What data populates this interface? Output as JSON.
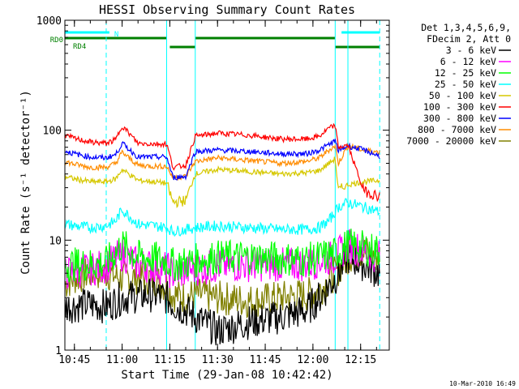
{
  "chart_data": {
    "type": "line",
    "title": "HESSI Observing Summary Count Rates",
    "xlabel": "Start Time (29-Jan-08 10:42:42)",
    "ylabel": "Count Rate (s⁻¹ detector⁻¹)",
    "yscale": "log",
    "ylim": [
      1,
      1000
    ],
    "xlim": [
      "10:42",
      "12:24"
    ],
    "x_ticks": [
      "10:45",
      "11:00",
      "11:15",
      "11:30",
      "11:45",
      "12:00",
      "12:15"
    ],
    "y_ticks": [
      "1",
      "10",
      "100",
      "1000"
    ],
    "footer": "10-Mar-2010 16:49",
    "legend": {
      "placement": "right",
      "header": [
        "Det 1,3,4,5,6,9,",
        "FDecim 2, Att 0"
      ],
      "entries": [
        {
          "label": "3 - 6 keV",
          "color": "#000000"
        },
        {
          "label": "6 - 12 keV",
          "color": "#ff00ff"
        },
        {
          "label": "12 - 25 keV",
          "color": "#00ff00"
        },
        {
          "label": "25 - 50 keV",
          "color": "#00ffff"
        },
        {
          "label": "50 - 100 keV",
          "color": "#d6c800"
        },
        {
          "label": "100 - 300 keV",
          "color": "#ff0000"
        },
        {
          "label": "300 - 800 keV",
          "color": "#0000ff"
        },
        {
          "label": "800 - 7000 keV",
          "color": "#ff8c00"
        },
        {
          "label": "7000 - 20000 keV",
          "color": "#808000"
        }
      ]
    },
    "flags": [
      {
        "label": "N",
        "color": "#00ffff",
        "segments": [
          [
            "10:42",
            "10:56"
          ],
          [
            "12:09",
            "12:21"
          ]
        ]
      },
      {
        "label": "RD0",
        "color": "#008000",
        "segments": [
          [
            "10:42",
            "11:14"
          ],
          [
            "11:23",
            "12:07"
          ]
        ]
      },
      {
        "label": "RD4",
        "color": "#008000",
        "segments": [
          [
            "11:15",
            "11:23"
          ],
          [
            "12:07",
            "12:21"
          ]
        ]
      }
    ],
    "vlines": [
      {
        "x": "10:42",
        "style": "solid"
      },
      {
        "x": "10:55",
        "style": "dashed"
      },
      {
        "x": "11:14",
        "style": "solid"
      },
      {
        "x": "11:23",
        "style": "solid"
      },
      {
        "x": "12:07",
        "style": "solid"
      },
      {
        "x": "12:11",
        "style": "solid"
      },
      {
        "x": "12:21",
        "style": "dashed"
      }
    ],
    "series": [
      {
        "name": "7000 - 20000 keV",
        "color": "#808000",
        "x": [
          "10:42",
          "10:45",
          "10:50",
          "10:55",
          "11:00",
          "11:05",
          "11:10",
          "11:14",
          "11:16",
          "11:20",
          "11:23",
          "11:30",
          "11:40",
          "11:50",
          "11:58",
          "12:02",
          "12:07",
          "12:11",
          "12:16",
          "12:21"
        ],
        "y": [
          4,
          4.5,
          5,
          5,
          4.5,
          4.6,
          4.5,
          3.8,
          3.2,
          3,
          3.2,
          3,
          2.8,
          3,
          3.2,
          3.5,
          5,
          7,
          8,
          7
        ]
      },
      {
        "name": "3 - 6 keV",
        "color": "#000000",
        "x": [
          "10:42",
          "10:50",
          "10:55",
          "11:00",
          "11:10",
          "11:14",
          "11:16",
          "11:20",
          "11:23",
          "11:30",
          "11:40",
          "11:50",
          "11:58",
          "12:02",
          "12:07",
          "12:11",
          "12:16",
          "12:21"
        ],
        "y": [
          2.5,
          2.6,
          2.5,
          3,
          3.2,
          3,
          2.6,
          2.3,
          2,
          1.5,
          1.8,
          2,
          2.3,
          3,
          4.5,
          7,
          6,
          5
        ]
      },
      {
        "name": "6 - 12 keV",
        "color": "#ff00ff",
        "x": [
          "10:42",
          "10:50",
          "10:55",
          "11:00",
          "11:05",
          "11:10",
          "11:14",
          "11:16",
          "11:20",
          "11:23",
          "11:30",
          "11:40",
          "11:50",
          "11:58",
          "12:02",
          "12:07",
          "12:11",
          "12:16",
          "12:21"
        ],
        "y": [
          5,
          5.5,
          5.8,
          7.5,
          6,
          5.8,
          5.5,
          5,
          5.2,
          5.5,
          5.8,
          6,
          6,
          6,
          6.5,
          7,
          9,
          8,
          7
        ]
      },
      {
        "name": "12 - 25 keV",
        "color": "#00ff00",
        "x": [
          "10:42",
          "10:50",
          "10:55",
          "11:00",
          "11:05",
          "11:10",
          "11:14",
          "11:16",
          "11:20",
          "11:23",
          "11:30",
          "11:40",
          "11:50",
          "11:58",
          "12:02",
          "12:07",
          "12:11",
          "12:16",
          "12:21"
        ],
        "y": [
          6,
          6,
          6.2,
          9,
          7,
          6.8,
          6.5,
          6,
          6.2,
          6.5,
          7,
          7,
          6.8,
          6.6,
          7,
          7.5,
          9,
          8.5,
          8
        ]
      },
      {
        "name": "25 - 50 keV",
        "color": "#00ffff",
        "x": [
          "10:42",
          "10:45",
          "10:50",
          "10:55",
          "10:58",
          "11:00",
          "11:05",
          "11:10",
          "11:14",
          "11:16",
          "11:20",
          "11:23",
          "11:30",
          "11:40",
          "11:50",
          "11:58",
          "12:02",
          "12:05",
          "12:07",
          "12:08",
          "12:11",
          "12:16",
          "12:21"
        ],
        "y": [
          14,
          13.5,
          13,
          13.5,
          15,
          19,
          14,
          13.5,
          13,
          12,
          12.5,
          13,
          13.5,
          13,
          12.5,
          12.5,
          13,
          15,
          18,
          20,
          22,
          20,
          18
        ]
      },
      {
        "name": "50 - 100 keV",
        "color": "#d6c800",
        "x": [
          "10:42",
          "10:45",
          "10:50",
          "10:55",
          "10:58",
          "11:00",
          "11:05",
          "11:10",
          "11:14",
          "11:16",
          "11:20",
          "11:23",
          "11:30",
          "11:40",
          "11:50",
          "11:58",
          "12:02",
          "12:05",
          "12:07",
          "12:08",
          "12:11",
          "12:16",
          "12:21"
        ],
        "y": [
          38,
          36,
          34,
          34,
          36,
          44,
          35,
          34,
          33,
          22,
          23,
          40,
          44,
          42,
          40,
          41,
          43,
          50,
          55,
          28,
          32,
          34,
          35
        ]
      },
      {
        "name": "800 - 7000 keV",
        "color": "#ff8c00",
        "x": [
          "10:42",
          "10:45",
          "10:50",
          "10:55",
          "10:58",
          "11:00",
          "11:05",
          "11:10",
          "11:14",
          "11:16",
          "11:20",
          "11:23",
          "11:30",
          "11:40",
          "11:50",
          "11:58",
          "12:02",
          "12:05",
          "12:07",
          "12:08",
          "12:11",
          "12:16",
          "12:21"
        ],
        "y": [
          52,
          49,
          46,
          46,
          50,
          63,
          48,
          47,
          47,
          37,
          38,
          52,
          56,
          53,
          50,
          52,
          56,
          66,
          72,
          50,
          72,
          66,
          63
        ]
      },
      {
        "name": "300 - 800 keV",
        "color": "#0000ff",
        "x": [
          "10:42",
          "10:45",
          "10:50",
          "10:55",
          "10:58",
          "11:00",
          "11:05",
          "11:10",
          "11:14",
          "11:16",
          "11:20",
          "11:23",
          "11:30",
          "11:40",
          "11:50",
          "11:58",
          "12:02",
          "12:05",
          "12:07",
          "12:08",
          "12:11",
          "12:16",
          "12:21"
        ],
        "y": [
          65,
          61,
          57,
          56,
          60,
          76,
          57,
          57,
          57,
          37,
          38,
          64,
          66,
          64,
          61,
          61,
          66,
          74,
          80,
          65,
          72,
          66,
          58
        ]
      },
      {
        "name": "100 - 300 keV",
        "color": "#ff0000",
        "x": [
          "10:42",
          "10:45",
          "10:50",
          "10:55",
          "10:58",
          "11:00",
          "11:05",
          "11:10",
          "11:14",
          "11:16",
          "11:20",
          "11:23",
          "11:30",
          "11:40",
          "11:50",
          "11:58",
          "12:02",
          "12:05",
          "12:07",
          "12:08",
          "12:11",
          "12:16",
          "12:21"
        ],
        "y": [
          90,
          84,
          78,
          76,
          82,
          110,
          76,
          75,
          75,
          46,
          48,
          88,
          94,
          90,
          83,
          83,
          88,
          104,
          110,
          70,
          73,
          28,
          25
        ]
      }
    ]
  }
}
